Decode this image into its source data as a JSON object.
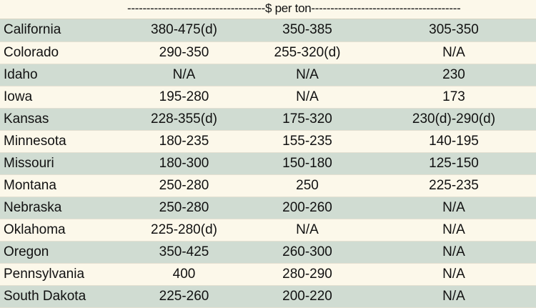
{
  "header": {
    "units_label": "------------------------------------$ per ton---------------------------------------"
  },
  "colors": {
    "band_green": "#d0dcd2",
    "band_cream": "#fcf8ea"
  },
  "rows": [
    {
      "state": "California",
      "values": [
        "380-475(d)",
        "350-385",
        "305-350"
      ]
    },
    {
      "state": "Colorado",
      "values": [
        "290-350",
        "255-320(d)",
        "N/A"
      ]
    },
    {
      "state": "Idaho",
      "values": [
        "N/A",
        "N/A",
        "230"
      ]
    },
    {
      "state": "Iowa",
      "values": [
        "195-280",
        "N/A",
        "173"
      ]
    },
    {
      "state": "Kansas",
      "values": [
        "228-355(d)",
        "175-320",
        "230(d)-290(d)"
      ]
    },
    {
      "state": "Minnesota",
      "values": [
        "180-235",
        "155-235",
        "140-195"
      ]
    },
    {
      "state": "Missouri",
      "values": [
        "180-300",
        "150-180",
        "125-150"
      ]
    },
    {
      "state": "Montana",
      "values": [
        "250-280",
        "250",
        "225-235"
      ]
    },
    {
      "state": "Nebraska",
      "values": [
        "250-280",
        "200-260",
        "N/A"
      ]
    },
    {
      "state": "Oklahoma",
      "values": [
        "225-280(d)",
        "N/A",
        "N/A"
      ]
    },
    {
      "state": "Oregon",
      "values": [
        "350-425",
        "260-300",
        "N/A"
      ]
    },
    {
      "state": "Pennsylvania",
      "values": [
        "400",
        "280-290",
        "N/A"
      ]
    },
    {
      "state": "South Dakota",
      "values": [
        "225-260",
        "200-220",
        "N/A"
      ]
    }
  ]
}
